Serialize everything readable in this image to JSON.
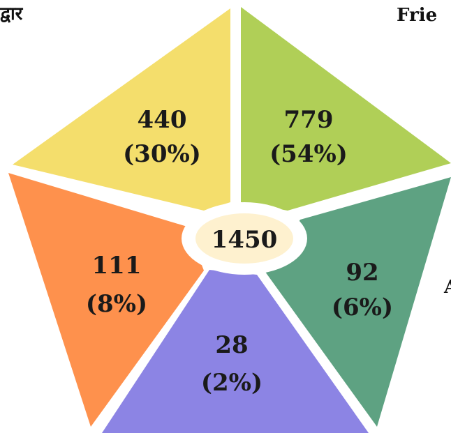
{
  "chart_data": {
    "type": "pie",
    "total": "1450",
    "slices": [
      {
        "value": 440,
        "value_label": "440",
        "pct_label": "(30%)",
        "color": "#F4DE6C"
      },
      {
        "value": 779,
        "value_label": "779",
        "pct_label": "(54%)",
        "color": "#B0CF57"
      },
      {
        "value": 92,
        "value_label": "92",
        "pct_label": "(6%)",
        "color": "#5EA282"
      },
      {
        "value": 28,
        "value_label": "28",
        "pct_label": "(2%)",
        "color": "#8C84E4"
      },
      {
        "value": 111,
        "value_label": "111",
        "pct_label": "(8%)",
        "color": "#FE914D"
      }
    ],
    "center_color": "#FEF1CF"
  },
  "page": {
    "top_left_fragment": "द्वार",
    "top_right_fragment": "Frie",
    "right_edge_fragment": "A"
  }
}
